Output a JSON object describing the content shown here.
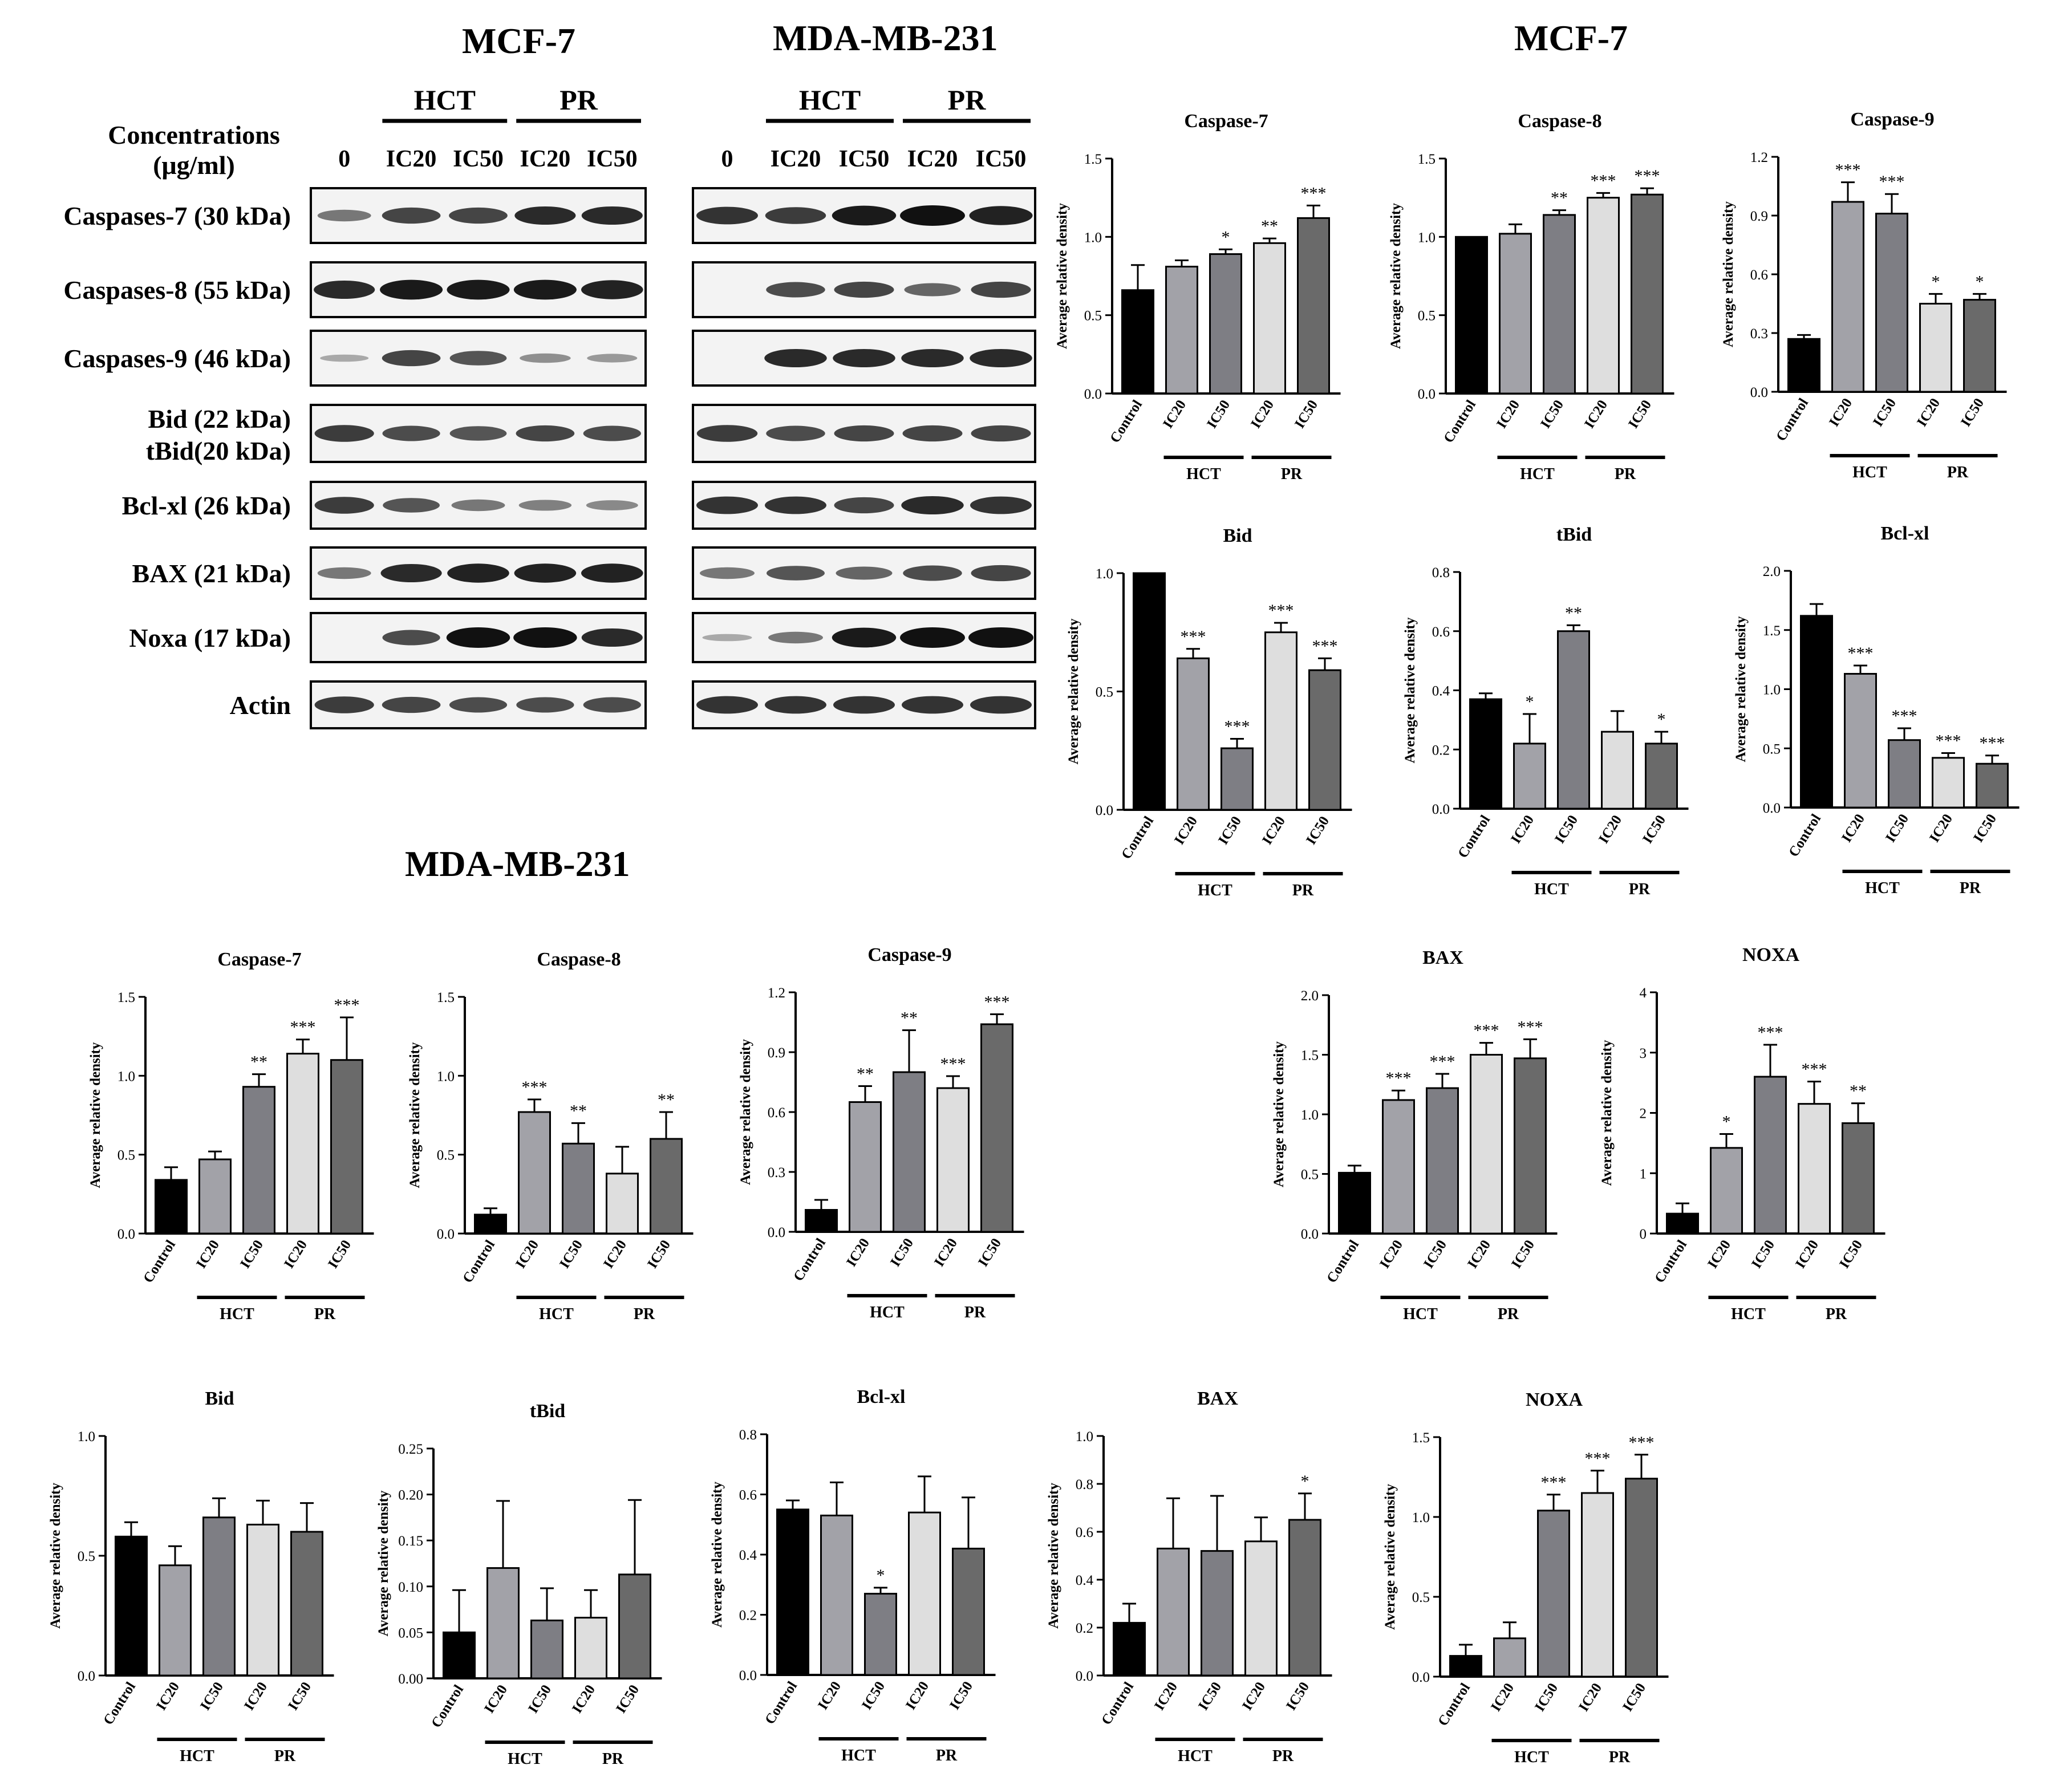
{
  "headings": {
    "mcf7_blot": "MCF-7",
    "mda_blot": "MDA-MB-231",
    "mcf7_charts": "MCF-7",
    "mda_charts": "MDA-MB-231"
  },
  "blot_panel": {
    "concentration_label_1": "Concentrations",
    "concentration_label_2": "(μg/ml)",
    "group_labels": [
      "HCT",
      "PR"
    ],
    "lane_labels": [
      "0",
      "IC20",
      "IC50",
      "IC20",
      "IC50"
    ],
    "protein_rows": [
      [
        "Caspases-7 (30 kDa)"
      ],
      [
        "Caspases-8 (55 kDa)"
      ],
      [
        "Caspases-9 (46 kDa)"
      ],
      [
        "Bid (22 kDa)",
        "tBid(20 kDa)"
      ],
      [
        "Bcl-xl (26 kDa)"
      ],
      [
        "BAX (21 kDa)"
      ],
      [
        "Noxa (17 kDa)"
      ],
      [
        "Actin"
      ]
    ],
    "mcf7_band_intensity": [
      [
        0.4,
        0.7,
        0.7,
        0.85,
        0.85
      ],
      [
        0.85,
        0.95,
        0.95,
        0.95,
        0.9
      ],
      [
        0.1,
        0.7,
        0.6,
        0.25,
        0.2
      ],
      [
        0.75,
        0.65,
        0.6,
        0.7,
        0.65
      ],
      [
        0.75,
        0.6,
        0.4,
        0.35,
        0.3
      ],
      [
        0.4,
        0.85,
        0.9,
        0.9,
        0.9
      ],
      [
        0.0,
        0.65,
        1.0,
        1.0,
        0.85
      ],
      [
        0.75,
        0.7,
        0.65,
        0.65,
        0.65
      ]
    ],
    "mda_band_intensity": [
      [
        0.8,
        0.75,
        0.95,
        1.0,
        0.9
      ],
      [
        0.0,
        0.65,
        0.7,
        0.5,
        0.7
      ],
      [
        0.0,
        0.85,
        0.85,
        0.85,
        0.85
      ],
      [
        0.75,
        0.65,
        0.7,
        0.7,
        0.7
      ],
      [
        0.8,
        0.8,
        0.7,
        0.85,
        0.8
      ],
      [
        0.4,
        0.6,
        0.5,
        0.65,
        0.7
      ],
      [
        0.1,
        0.4,
        0.95,
        1.0,
        1.0
      ],
      [
        0.8,
        0.8,
        0.8,
        0.8,
        0.8
      ]
    ]
  },
  "colors": {
    "control": "#000000",
    "hct_ic20": "#a2a2a8",
    "hct_ic50": "#7e7e84",
    "pr_ic20": "#dedede",
    "pr_ic50": "#6a6a6a",
    "band": "#111111",
    "blot_bg": "#f3f3f3"
  },
  "chart_data": [
    {
      "type": "bar",
      "cell": "MCF-7",
      "title": "Caspase-7",
      "ylabel": "Average relative density",
      "categories": [
        "Control",
        "IC20",
        "IC50",
        "IC20",
        "IC50"
      ],
      "groups": [
        "HCT",
        "PR"
      ],
      "values": [
        0.66,
        0.81,
        0.89,
        0.96,
        1.12
      ],
      "errors": [
        0.16,
        0.04,
        0.03,
        0.03,
        0.08
      ],
      "sig": [
        "",
        "",
        "*",
        "**",
        "***"
      ],
      "ylim": [
        0,
        1.5
      ],
      "ticks": [
        "0.0",
        "0.5",
        "1.0",
        "1.5"
      ]
    },
    {
      "type": "bar",
      "cell": "MCF-7",
      "title": "Caspase-8",
      "ylabel": "Average relative density",
      "categories": [
        "Control",
        "IC20",
        "IC50",
        "IC20",
        "IC50"
      ],
      "groups": [
        "HCT",
        "PR"
      ],
      "values": [
        1.0,
        1.02,
        1.14,
        1.25,
        1.27
      ],
      "errors": [
        0,
        0.06,
        0.03,
        0.03,
        0.04
      ],
      "sig": [
        "",
        "",
        "**",
        "***",
        "***"
      ],
      "ylim": [
        0,
        1.5
      ],
      "ticks": [
        "0.0",
        "0.5",
        "1.0",
        "1.5"
      ]
    },
    {
      "type": "bar",
      "cell": "MCF-7",
      "title": "Caspase-9",
      "ylabel": "Average relative density",
      "categories": [
        "Control",
        "IC20",
        "IC50",
        "IC20",
        "IC50"
      ],
      "groups": [
        "HCT",
        "PR"
      ],
      "values": [
        0.27,
        0.97,
        0.91,
        0.45,
        0.47
      ],
      "errors": [
        0.02,
        0.1,
        0.1,
        0.05,
        0.03
      ],
      "sig": [
        "",
        "***",
        "***",
        "*",
        "*"
      ],
      "ylim": [
        0,
        1.2
      ],
      "ticks": [
        "0.0",
        "0.3",
        "0.6",
        "0.9",
        "1.2"
      ]
    },
    {
      "type": "bar",
      "cell": "MCF-7",
      "title": "Bid",
      "ylabel": "Average relative density",
      "categories": [
        "Control",
        "IC20",
        "IC50",
        "IC20",
        "IC50"
      ],
      "groups": [
        "HCT",
        "PR"
      ],
      "values": [
        1.0,
        0.64,
        0.26,
        0.75,
        0.59
      ],
      "errors": [
        0,
        0.04,
        0.04,
        0.04,
        0.05
      ],
      "sig": [
        "",
        "***",
        "***",
        "***",
        "***"
      ],
      "ylim": [
        0,
        1.0
      ],
      "ticks": [
        "0.0",
        "0.5",
        "1.0"
      ]
    },
    {
      "type": "bar",
      "cell": "MCF-7",
      "title": "tBid",
      "ylabel": "Average relative density",
      "categories": [
        "Control",
        "IC20",
        "IC50",
        "IC20",
        "IC50"
      ],
      "groups": [
        "HCT",
        "PR"
      ],
      "values": [
        0.37,
        0.22,
        0.6,
        0.26,
        0.22
      ],
      "errors": [
        0.02,
        0.1,
        0.02,
        0.07,
        0.04
      ],
      "sig": [
        "",
        "*",
        "**",
        "",
        "*"
      ],
      "ylim": [
        0,
        0.8
      ],
      "ticks": [
        "0.0",
        "0.2",
        "0.4",
        "0.6",
        "0.8"
      ]
    },
    {
      "type": "bar",
      "cell": "MCF-7",
      "title": "Bcl-xl",
      "ylabel": "Average relative density",
      "categories": [
        "Control",
        "IC20",
        "IC50",
        "IC20",
        "IC50"
      ],
      "groups": [
        "HCT",
        "PR"
      ],
      "values": [
        1.62,
        1.13,
        0.57,
        0.42,
        0.37
      ],
      "errors": [
        0.1,
        0.07,
        0.1,
        0.04,
        0.07
      ],
      "sig": [
        "",
        "***",
        "***",
        "***",
        "***"
      ],
      "ylim": [
        0,
        2.0
      ],
      "ticks": [
        "0.0",
        "0.5",
        "1.0",
        "1.5",
        "2.0"
      ]
    },
    {
      "type": "bar",
      "cell": "MDA-MB-231",
      "title": "Caspase-7",
      "ylabel": "Average relative density",
      "categories": [
        "Control",
        "IC20",
        "IC50",
        "IC20",
        "IC50"
      ],
      "groups": [
        "HCT",
        "PR"
      ],
      "values": [
        0.34,
        0.47,
        0.93,
        1.14,
        1.1
      ],
      "errors": [
        0.08,
        0.05,
        0.08,
        0.09,
        0.27
      ],
      "sig": [
        "",
        "",
        "**",
        "***",
        "***"
      ],
      "ylim": [
        0,
        1.5
      ],
      "ticks": [
        "0.0",
        "0.5",
        "1.0",
        "1.5"
      ]
    },
    {
      "type": "bar",
      "cell": "MDA-MB-231",
      "title": "Caspase-8",
      "ylabel": "Average relative density",
      "categories": [
        "Control",
        "IC20",
        "IC50",
        "IC20",
        "IC50"
      ],
      "groups": [
        "HCT",
        "PR"
      ],
      "values": [
        0.12,
        0.77,
        0.57,
        0.38,
        0.6
      ],
      "errors": [
        0.04,
        0.08,
        0.13,
        0.17,
        0.17
      ],
      "sig": [
        "",
        "***",
        "**",
        "",
        "**"
      ],
      "ylim": [
        0,
        1.5
      ],
      "ticks": [
        "0.0",
        "0.5",
        "1.0",
        "1.5"
      ]
    },
    {
      "type": "bar",
      "cell": "MDA-MB-231",
      "title": "Caspase-9",
      "ylabel": "Average relative density",
      "categories": [
        "Control",
        "IC20",
        "IC50",
        "IC20",
        "IC50"
      ],
      "groups": [
        "HCT",
        "PR"
      ],
      "values": [
        0.11,
        0.65,
        0.8,
        0.72,
        1.04
      ],
      "errors": [
        0.05,
        0.08,
        0.21,
        0.06,
        0.05
      ],
      "sig": [
        "",
        "**",
        "**",
        "***",
        "***"
      ],
      "ylim": [
        0,
        1.2
      ],
      "ticks": [
        "0.0",
        "0.3",
        "0.6",
        "0.9",
        "1.2"
      ]
    },
    {
      "type": "bar",
      "cell": "MDA-MB-231",
      "title": "BAX",
      "ylabel": "Average relative density",
      "categories": [
        "Control",
        "IC20",
        "IC50",
        "IC20",
        "IC50"
      ],
      "groups": [
        "HCT",
        "PR"
      ],
      "values": [
        0.51,
        1.12,
        1.22,
        1.5,
        1.47
      ],
      "errors": [
        0.06,
        0.08,
        0.12,
        0.1,
        0.16
      ],
      "sig": [
        "",
        "***",
        "***",
        "***",
        "***"
      ],
      "ylim": [
        0,
        2.0
      ],
      "ticks": [
        "0.0",
        "0.5",
        "1.0",
        "1.5",
        "2.0"
      ]
    },
    {
      "type": "bar",
      "cell": "MDA-MB-231",
      "title": "NOXA",
      "ylabel": "Average relative density",
      "categories": [
        "Control",
        "IC20",
        "IC50",
        "IC20",
        "IC50"
      ],
      "groups": [
        "HCT",
        "PR"
      ],
      "values": [
        0.33,
        1.42,
        2.6,
        2.15,
        1.83
      ],
      "errors": [
        0.17,
        0.23,
        0.53,
        0.37,
        0.33
      ],
      "sig": [
        "",
        "*",
        "***",
        "***",
        "**"
      ],
      "ylim": [
        0,
        4
      ],
      "ticks": [
        "0",
        "1",
        "2",
        "3",
        "4"
      ]
    },
    {
      "type": "bar",
      "cell": "MDA-MB-231",
      "title": "Bid",
      "ylabel": "Average relative density",
      "categories": [
        "Control",
        "IC20",
        "IC50",
        "IC20",
        "IC50"
      ],
      "groups": [
        "HCT",
        "PR"
      ],
      "values": [
        0.58,
        0.46,
        0.66,
        0.63,
        0.6
      ],
      "errors": [
        0.06,
        0.08,
        0.08,
        0.1,
        0.12
      ],
      "sig": [
        "",
        "",
        "",
        "",
        ""
      ],
      "ylim": [
        0,
        1.0
      ],
      "ticks": [
        "0.0",
        "0.5",
        "1.0"
      ]
    },
    {
      "type": "bar",
      "cell": "MDA-MB-231",
      "title": "tBid",
      "ylabel": "Average relative density",
      "categories": [
        "Control",
        "IC20",
        "IC50",
        "IC20",
        "IC50"
      ],
      "groups": [
        "HCT",
        "PR"
      ],
      "values": [
        0.05,
        0.12,
        0.063,
        0.066,
        0.113
      ],
      "errors": [
        0.046,
        0.073,
        0.035,
        0.03,
        0.081
      ],
      "sig": [
        "",
        "",
        "",
        "",
        ""
      ],
      "ylim": [
        0,
        0.25
      ],
      "ticks": [
        "0.00",
        "0.05",
        "0.10",
        "0.15",
        "0.20",
        "0.25"
      ]
    },
    {
      "type": "bar",
      "cell": "MDA-MB-231",
      "title": "Bcl-xl",
      "ylabel": "Average relative density",
      "categories": [
        "Control",
        "IC20",
        "IC50",
        "IC20",
        "IC50"
      ],
      "groups": [
        "HCT",
        "PR"
      ],
      "values": [
        0.55,
        0.53,
        0.27,
        0.54,
        0.42
      ],
      "errors": [
        0.03,
        0.11,
        0.02,
        0.12,
        0.17
      ],
      "sig": [
        "",
        "",
        "*",
        "",
        ""
      ],
      "ylim": [
        0,
        0.8
      ],
      "ticks": [
        "0.0",
        "0.2",
        "0.4",
        "0.6",
        "0.8"
      ]
    },
    {
      "type": "bar",
      "cell": "MDA-MB-231",
      "title": "BAX",
      "ylabel": "Average relative density",
      "categories": [
        "Control",
        "IC20",
        "IC50",
        "IC20",
        "IC50"
      ],
      "groups": [
        "HCT",
        "PR"
      ],
      "values": [
        0.22,
        0.53,
        0.52,
        0.56,
        0.65
      ],
      "errors": [
        0.08,
        0.21,
        0.23,
        0.1,
        0.11
      ],
      "sig": [
        "",
        "",
        "",
        "",
        "*"
      ],
      "ylim": [
        0,
        1.0
      ],
      "ticks": [
        "0.0",
        "0.2",
        "0.4",
        "0.6",
        "0.8",
        "1.0"
      ]
    },
    {
      "type": "bar",
      "cell": "MDA-MB-231",
      "title": "NOXA",
      "ylabel": "Average relative density",
      "categories": [
        "Control",
        "IC20",
        "IC50",
        "IC20",
        "IC50"
      ],
      "groups": [
        "HCT",
        "PR"
      ],
      "values": [
        0.13,
        0.24,
        1.04,
        1.15,
        1.24
      ],
      "errors": [
        0.07,
        0.1,
        0.1,
        0.14,
        0.15
      ],
      "sig": [
        "",
        "",
        "***",
        "***",
        "***"
      ],
      "ylim": [
        0,
        1.5
      ],
      "ticks": [
        "0.0",
        "0.5",
        "1.0",
        "1.5"
      ]
    }
  ]
}
